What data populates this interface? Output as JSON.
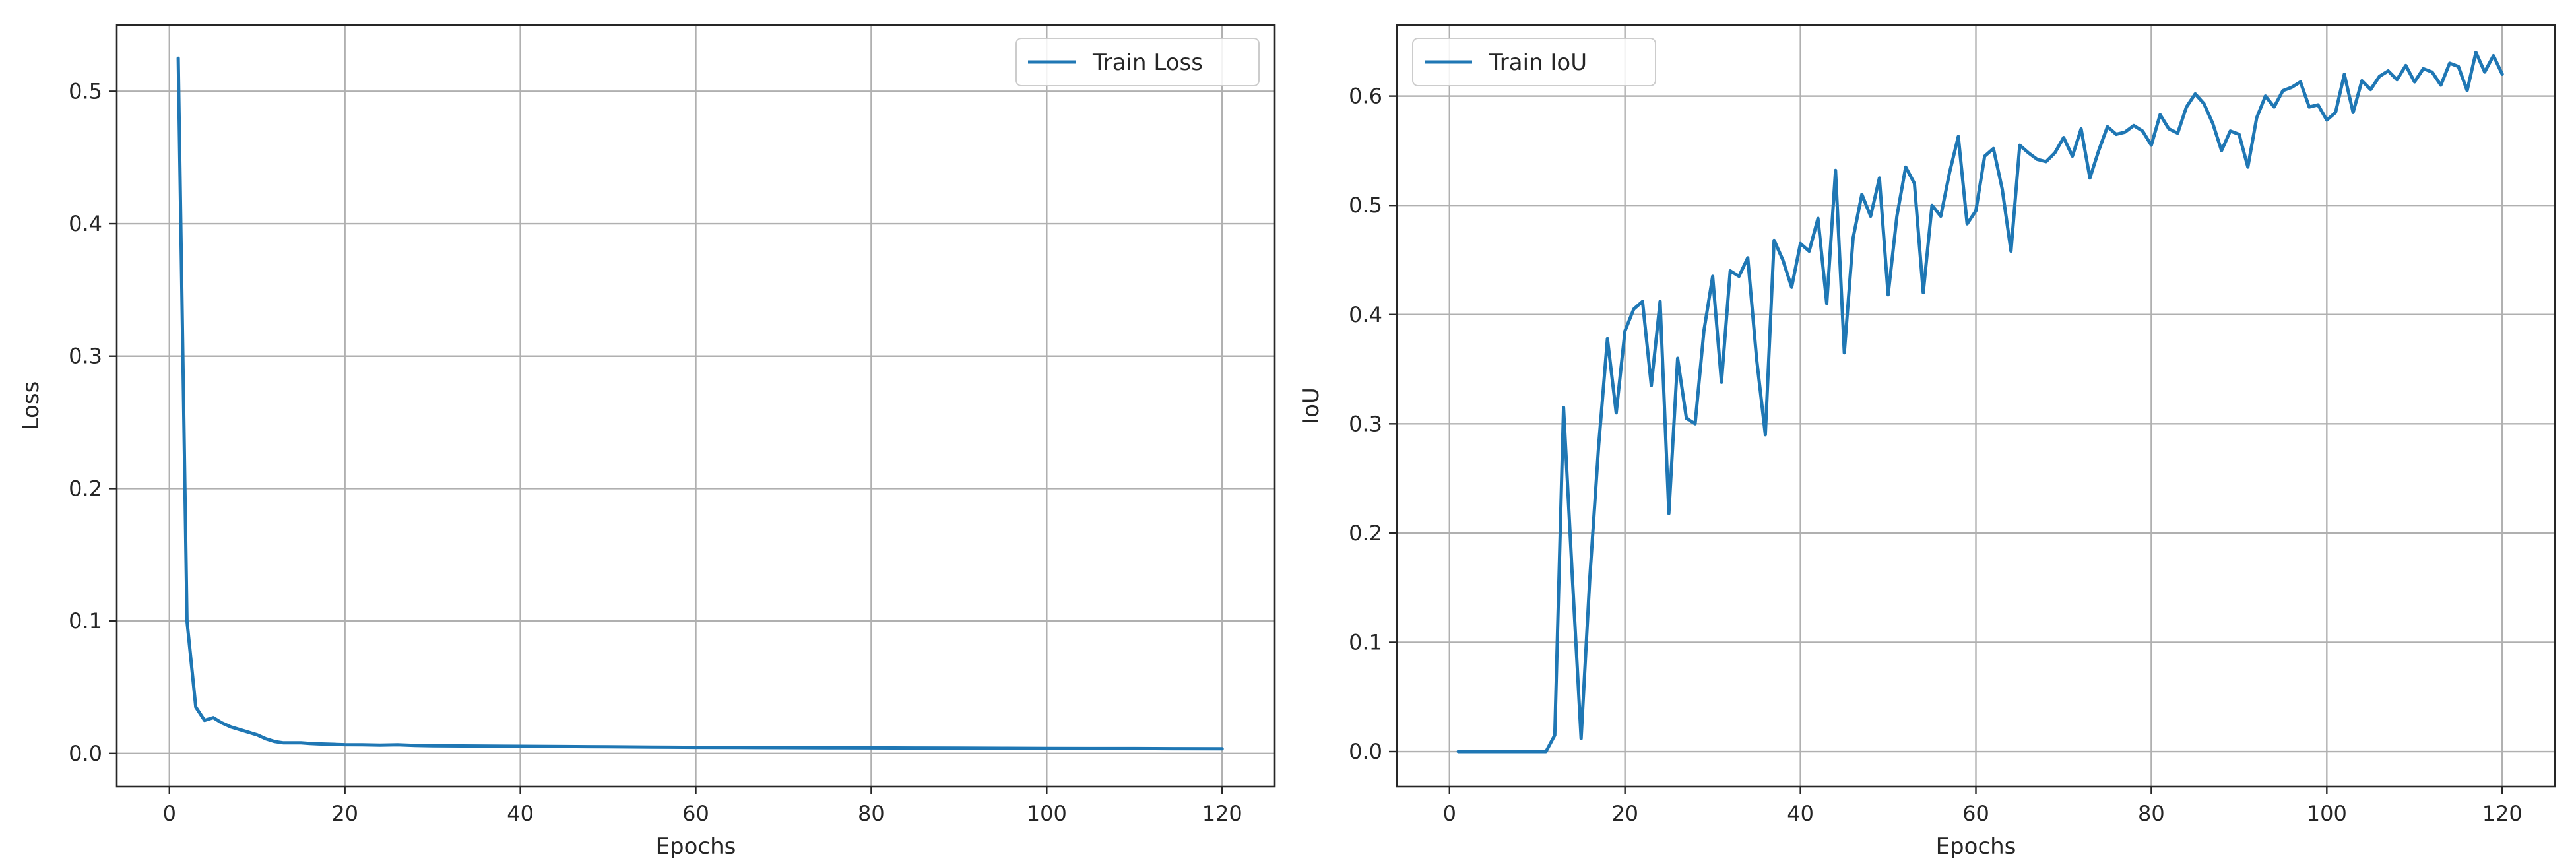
{
  "chart_data": [
    {
      "type": "line",
      "title": "",
      "xlabel": "Epochs",
      "ylabel": "Loss",
      "xlim": [
        -6,
        126
      ],
      "ylim": [
        -0.025,
        0.55
      ],
      "xticks": [
        0,
        20,
        40,
        60,
        80,
        100,
        120
      ],
      "yticks": [
        0.0,
        0.1,
        0.2,
        0.3,
        0.4,
        0.5
      ],
      "ytick_labels": [
        "0.0",
        "0.1",
        "0.2",
        "0.3",
        "0.4",
        "0.5"
      ],
      "grid": true,
      "legend_position": "top-right",
      "series": [
        {
          "name": "Train Loss",
          "color": "#1f77b4",
          "x": [
            1,
            2,
            3,
            4,
            5,
            6,
            7,
            8,
            9,
            10,
            11,
            12,
            13,
            14,
            15,
            16,
            17,
            18,
            19,
            20,
            22,
            24,
            26,
            28,
            30,
            35,
            40,
            45,
            50,
            55,
            60,
            65,
            70,
            75,
            80,
            85,
            90,
            95,
            100,
            105,
            110,
            115,
            120
          ],
          "y": [
            0.525,
            0.1,
            0.035,
            0.025,
            0.027,
            0.023,
            0.02,
            0.018,
            0.016,
            0.014,
            0.011,
            0.009,
            0.008,
            0.008,
            0.008,
            0.0075,
            0.0072,
            0.007,
            0.0068,
            0.0066,
            0.0065,
            0.0063,
            0.0065,
            0.006,
            0.0058,
            0.0056,
            0.0054,
            0.0052,
            0.005,
            0.0048,
            0.0046,
            0.0045,
            0.0044,
            0.0043,
            0.0042,
            0.0041,
            0.004,
            0.0039,
            0.0038,
            0.0037,
            0.0037,
            0.0036,
            0.0035
          ]
        }
      ]
    },
    {
      "type": "line",
      "title": "",
      "xlabel": "Epochs",
      "ylabel": "IoU",
      "xlim": [
        -6,
        126
      ],
      "ylim": [
        -0.032,
        0.665
      ],
      "xticks": [
        0,
        20,
        40,
        60,
        80,
        100,
        120
      ],
      "yticks": [
        0.0,
        0.1,
        0.2,
        0.3,
        0.4,
        0.5,
        0.6
      ],
      "ytick_labels": [
        "0.0",
        "0.1",
        "0.2",
        "0.3",
        "0.4",
        "0.5",
        "0.6"
      ],
      "grid": true,
      "legend_position": "top-left",
      "series": [
        {
          "name": "Train IoU",
          "color": "#1f77b4",
          "x": [
            1,
            2,
            3,
            4,
            5,
            6,
            7,
            8,
            9,
            10,
            11,
            12,
            13,
            14,
            15,
            16,
            17,
            18,
            19,
            20,
            21,
            22,
            23,
            24,
            25,
            26,
            27,
            28,
            29,
            30,
            31,
            32,
            33,
            34,
            35,
            36,
            37,
            38,
            39,
            40,
            41,
            42,
            43,
            44,
            45,
            46,
            47,
            48,
            49,
            50,
            51,
            52,
            53,
            54,
            55,
            56,
            57,
            58,
            59,
            60,
            61,
            62,
            63,
            64,
            65,
            66,
            67,
            68,
            69,
            70,
            71,
            72,
            73,
            74,
            75,
            76,
            77,
            78,
            79,
            80,
            81,
            82,
            83,
            84,
            85,
            86,
            87,
            88,
            89,
            90,
            91,
            92,
            93,
            94,
            95,
            96,
            97,
            98,
            99,
            100,
            101,
            102,
            103,
            104,
            105,
            106,
            107,
            108,
            109,
            110,
            111,
            112,
            113,
            114,
            115,
            116,
            117,
            118,
            119,
            120
          ],
          "y": [
            0.0,
            0.0,
            0.0,
            0.0,
            0.0,
            0.0,
            0.0,
            0.0,
            0.0,
            0.0,
            0.0,
            0.015,
            0.315,
            0.16,
            0.012,
            0.16,
            0.28,
            0.378,
            0.31,
            0.385,
            0.405,
            0.412,
            0.335,
            0.412,
            0.218,
            0.36,
            0.305,
            0.3,
            0.385,
            0.435,
            0.338,
            0.44,
            0.435,
            0.452,
            0.36,
            0.29,
            0.468,
            0.45,
            0.425,
            0.465,
            0.458,
            0.488,
            0.41,
            0.532,
            0.365,
            0.47,
            0.51,
            0.49,
            0.525,
            0.418,
            0.49,
            0.535,
            0.52,
            0.42,
            0.5,
            0.49,
            0.53,
            0.563,
            0.483,
            0.495,
            0.545,
            0.552,
            0.515,
            0.458,
            0.555,
            0.548,
            0.542,
            0.54,
            0.548,
            0.562,
            0.545,
            0.57,
            0.525,
            0.55,
            0.572,
            0.565,
            0.567,
            0.573,
            0.568,
            0.555,
            0.583,
            0.57,
            0.566,
            0.59,
            0.602,
            0.593,
            0.575,
            0.55,
            0.568,
            0.565,
            0.535,
            0.58,
            0.6,
            0.59,
            0.605,
            0.608,
            0.613,
            0.59,
            0.592,
            0.578,
            0.585,
            0.62,
            0.585,
            0.614,
            0.606,
            0.618,
            0.623,
            0.615,
            0.628,
            0.613,
            0.625,
            0.622,
            0.61,
            0.63,
            0.627,
            0.605,
            0.64,
            0.622,
            0.637,
            0.62
          ]
        }
      ]
    }
  ]
}
